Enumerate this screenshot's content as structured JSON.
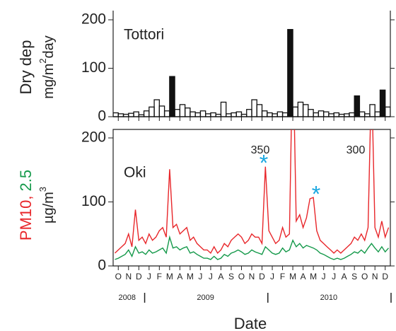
{
  "chart_data": [
    {
      "type": "histogram",
      "panel_label": "Tottori",
      "ylabel": {
        "line1": "Dry dep",
        "unit": "mg/m",
        "power": "2",
        "unit_end": "day"
      },
      "bins": [
        0,
        0.5,
        1,
        1.5,
        2,
        2.5,
        3,
        3.5,
        4,
        4.5,
        5,
        5.5,
        6,
        6.5,
        7,
        7.5,
        8,
        8.5,
        9,
        9.5,
        10,
        10.5,
        11,
        11.5,
        12,
        12.5,
        13,
        13.5,
        14,
        14.5,
        15,
        15.5,
        16,
        16.5,
        17,
        17.5,
        18,
        18.5,
        19,
        19.5,
        20,
        20.5,
        21,
        21.5,
        22,
        22.5,
        23,
        23.5,
        24,
        24.5,
        25,
        25.5,
        26,
        26.5,
        27
      ],
      "values": [
        8,
        6,
        5,
        7,
        10,
        4,
        12,
        20,
        35,
        22,
        12,
        83,
        15,
        25,
        18,
        10,
        8,
        12,
        6,
        8,
        5,
        30,
        6,
        8,
        10,
        5,
        15,
        35,
        25,
        12,
        8,
        6,
        10,
        8,
        180,
        20,
        30,
        25,
        15,
        8,
        12,
        10,
        6,
        8,
        5,
        6,
        8,
        43,
        10,
        6,
        25,
        10,
        55,
        20
      ],
      "color": "#111111",
      "xlim": [
        0,
        27
      ],
      "ylim": [
        0,
        200
      ],
      "yticks": [
        0,
        100,
        200
      ]
    },
    {
      "type": "line",
      "panel_label": "Oki",
      "ylabel": {
        "pm10": "PM10",
        "sep": ",",
        "pm25": "2.5",
        "unit": "µg/m",
        "power": "3"
      },
      "xlabel": "Date",
      "years": [
        "2008",
        "2009",
        "2010"
      ],
      "annotations": [
        "350",
        "300",
        "*",
        "*"
      ],
      "x": [
        0.17,
        0.5,
        0.83,
        1.17,
        1.5,
        1.83,
        2.17,
        2.5,
        2.83,
        3.17,
        3.5,
        3.83,
        4.17,
        4.5,
        4.83,
        5.17,
        5.5,
        5.83,
        6.17,
        6.5,
        6.83,
        7.17,
        7.5,
        7.83,
        8.17,
        8.5,
        8.83,
        9.17,
        9.5,
        9.83,
        10.17,
        10.5,
        10.83,
        11.17,
        11.5,
        11.83,
        12.17,
        12.5,
        12.83,
        13.17,
        13.5,
        13.83,
        14.17,
        14.5,
        14.83,
        15.17,
        15.5,
        15.83,
        16.17,
        16.5,
        16.83,
        17.17,
        17.5,
        17.83,
        18.17,
        18.5,
        18.83,
        19.17,
        19.5,
        19.83,
        20.17,
        20.5,
        20.83,
        21.17,
        21.5,
        21.83,
        22.17,
        22.5,
        22.83,
        23.17,
        23.5,
        23.83,
        24.17,
        24.5,
        24.83,
        25.17,
        25.5,
        25.83,
        26.17,
        26.5,
        26.83
      ],
      "series": [
        {
          "name": "PM10",
          "color": "#e8262a",
          "values": [
            20,
            25,
            30,
            35,
            50,
            30,
            88,
            40,
            45,
            35,
            50,
            40,
            45,
            55,
            60,
            45,
            151,
            60,
            65,
            50,
            55,
            60,
            40,
            45,
            35,
            30,
            25,
            25,
            20,
            30,
            20,
            25,
            35,
            30,
            40,
            45,
            50,
            45,
            35,
            40,
            50,
            45,
            45,
            35,
            155,
            55,
            45,
            35,
            40,
            60,
            45,
            50,
            350,
            70,
            80,
            60,
            75,
            105,
            107,
            55,
            40,
            35,
            30,
            25,
            20,
            25,
            20,
            25,
            30,
            35,
            45,
            40,
            50,
            40,
            60,
            300,
            60,
            45,
            70,
            45,
            60
          ]
        },
        {
          "name": "2.5",
          "color": "#14994a",
          "values": [
            10,
            12,
            15,
            18,
            25,
            15,
            30,
            20,
            22,
            18,
            25,
            20,
            22,
            25,
            28,
            20,
            45,
            28,
            30,
            25,
            28,
            30,
            20,
            22,
            18,
            15,
            12,
            12,
            10,
            15,
            10,
            12,
            18,
            15,
            20,
            22,
            25,
            22,
            18,
            20,
            25,
            22,
            20,
            18,
            30,
            25,
            20,
            18,
            20,
            28,
            22,
            25,
            40,
            30,
            35,
            28,
            32,
            30,
            28,
            25,
            20,
            18,
            15,
            12,
            10,
            12,
            10,
            12,
            15,
            18,
            22,
            20,
            25,
            20,
            28,
            35,
            28,
            22,
            30,
            22,
            28
          ]
        }
      ],
      "xlim": [
        0,
        27
      ],
      "ylim": [
        0,
        200
      ],
      "yticks": [
        0,
        100,
        200
      ],
      "xticks": [
        {
          "value": 0.5,
          "label": "O"
        },
        {
          "value": 1.5,
          "label": "N"
        },
        {
          "value": 2.5,
          "label": "D"
        },
        {
          "value": 3.5,
          "label": "J"
        },
        {
          "value": 4.5,
          "label": "F"
        },
        {
          "value": 5.5,
          "label": "M"
        },
        {
          "value": 6.5,
          "label": "A"
        },
        {
          "value": 7.5,
          "label": "M"
        },
        {
          "value": 8.5,
          "label": "J"
        },
        {
          "value": 9.5,
          "label": "J"
        },
        {
          "value": 10.5,
          "label": "A"
        },
        {
          "value": 11.5,
          "label": "S"
        },
        {
          "value": 12.5,
          "label": "O"
        },
        {
          "value": 13.5,
          "label": "N"
        },
        {
          "value": 14.5,
          "label": "D"
        },
        {
          "value": 15.5,
          "label": "J"
        },
        {
          "value": 16.5,
          "label": "F"
        },
        {
          "value": 17.5,
          "label": "M"
        },
        {
          "value": 18.5,
          "label": "A"
        },
        {
          "value": 19.5,
          "label": "M"
        },
        {
          "value": 20.5,
          "label": "J"
        },
        {
          "value": 21.5,
          "label": "J"
        },
        {
          "value": 22.5,
          "label": "A"
        },
        {
          "value": 23.5,
          "label": "S"
        },
        {
          "value": 24.5,
          "label": "O"
        },
        {
          "value": 25.5,
          "label": "N"
        },
        {
          "value": 26.5,
          "label": "D"
        }
      ]
    }
  ]
}
